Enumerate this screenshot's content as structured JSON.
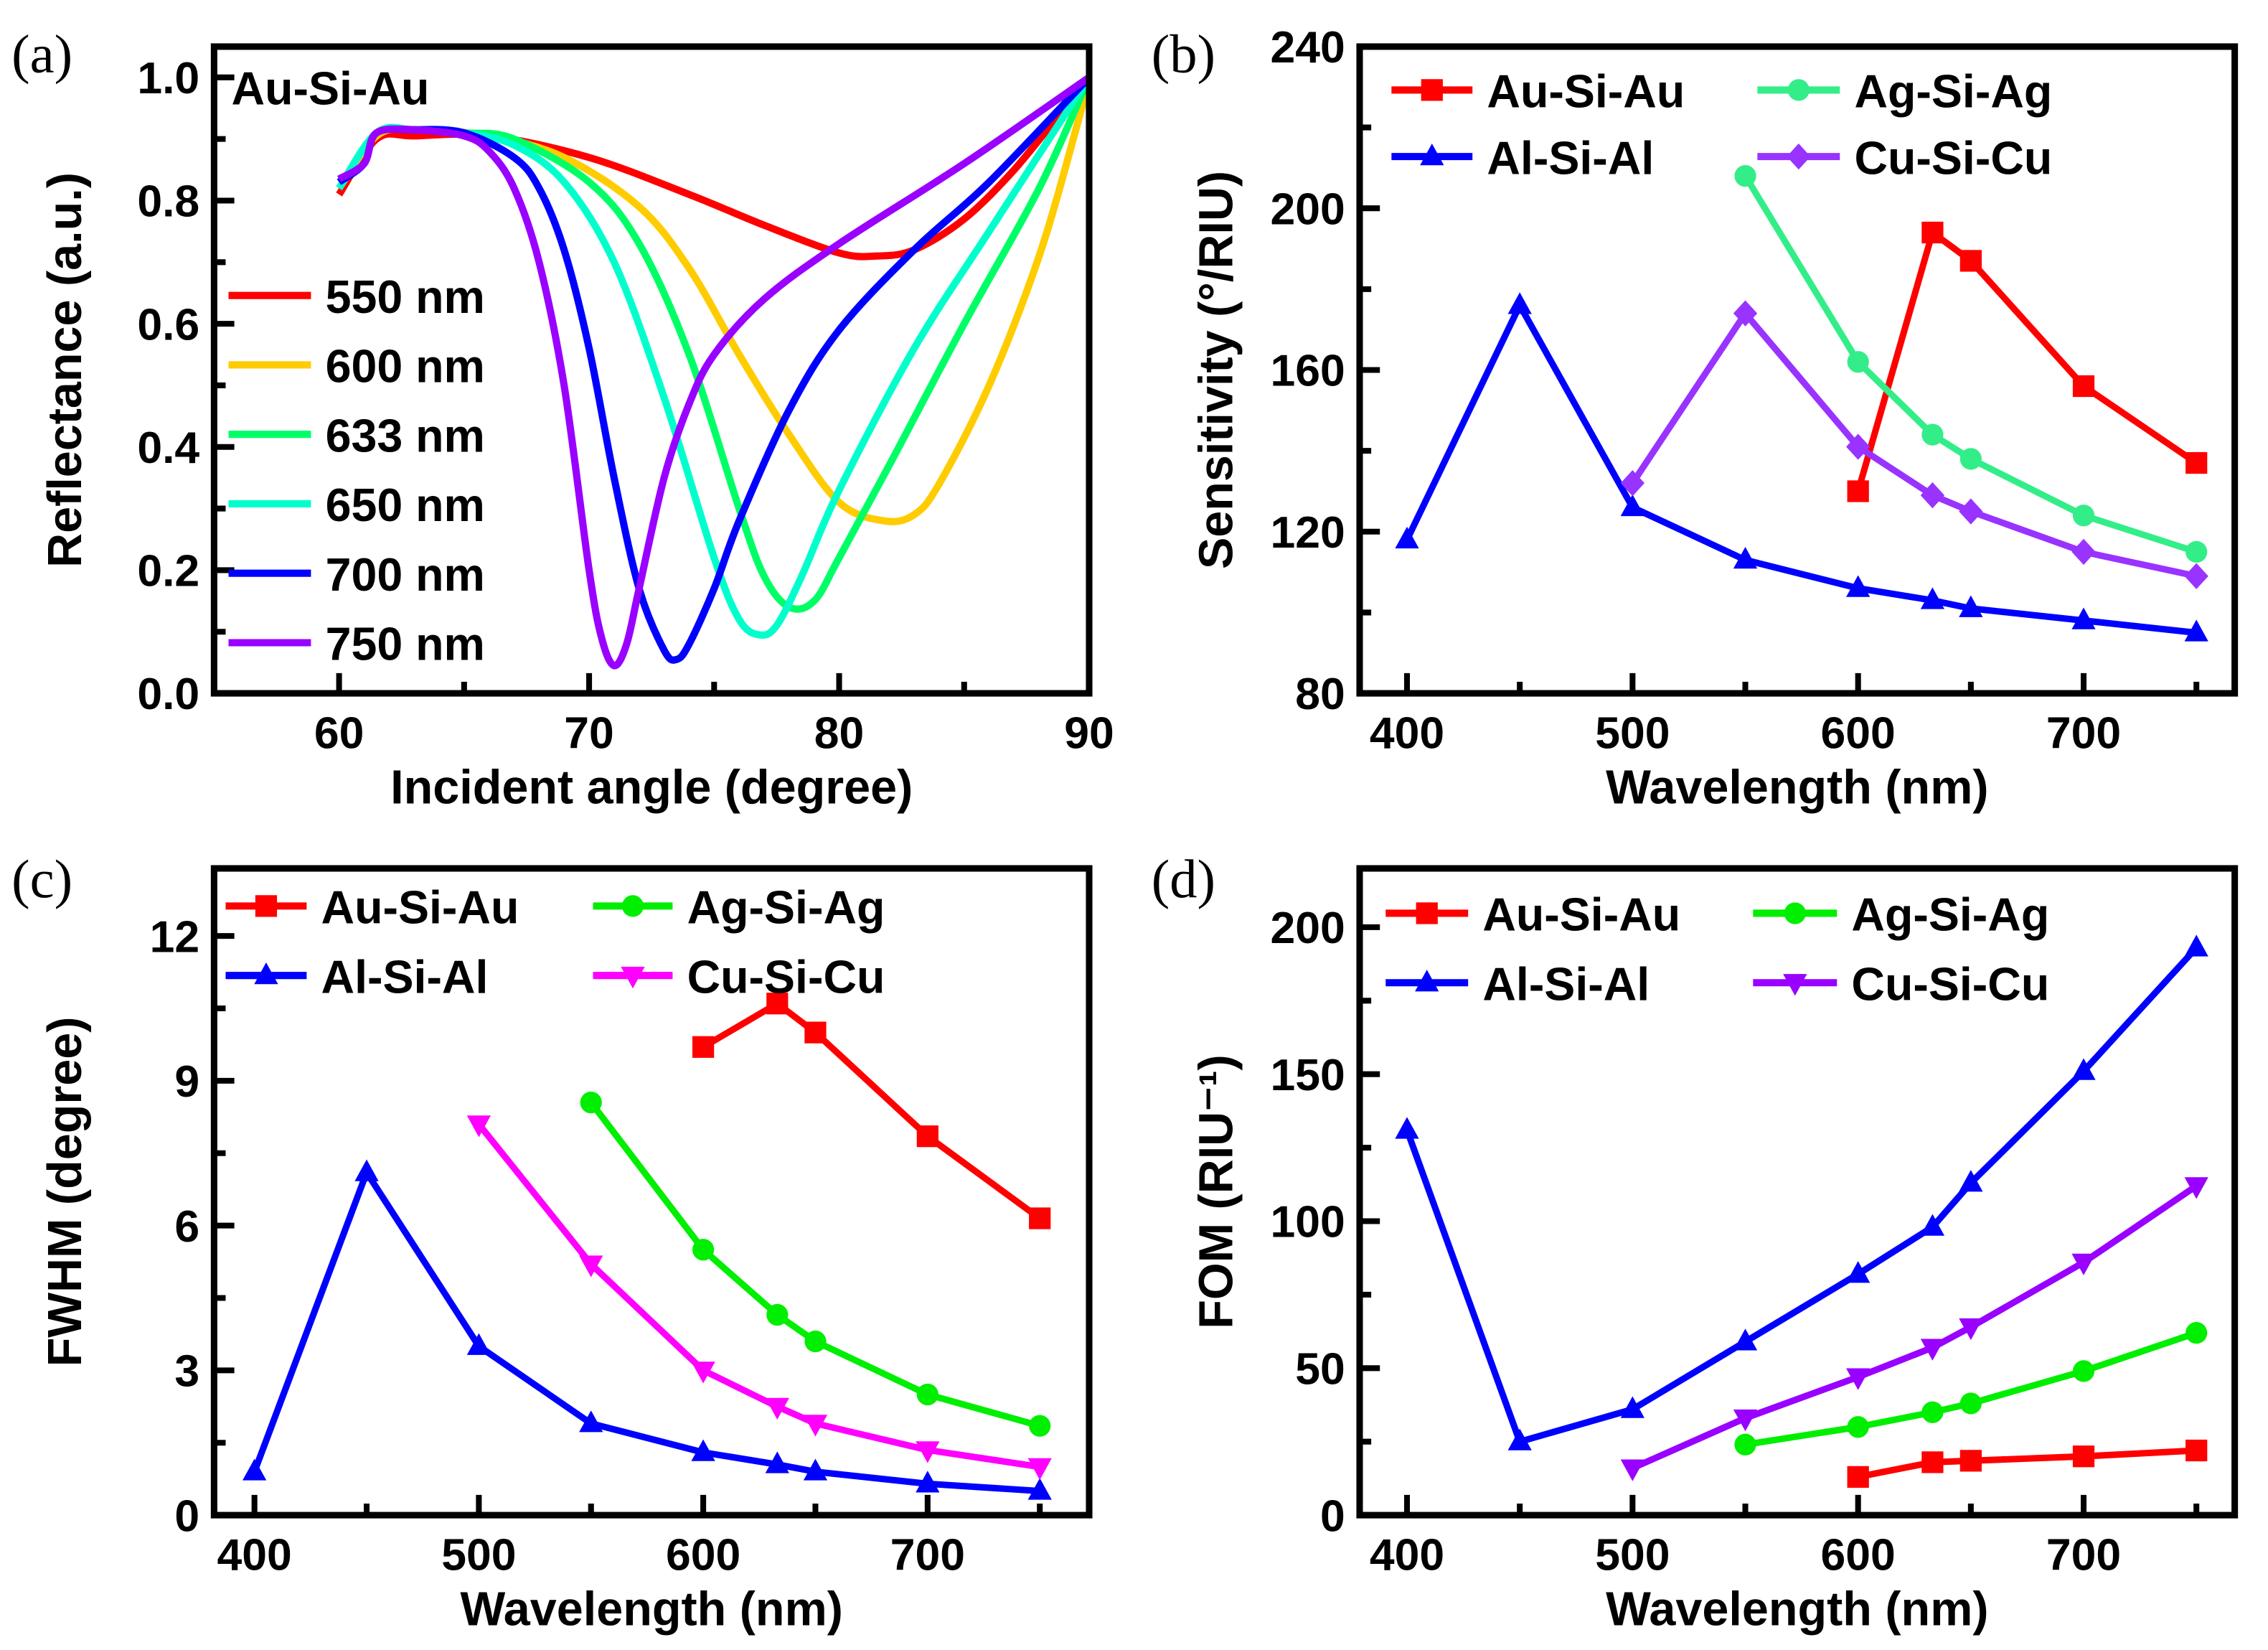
{
  "chart_data": [
    {
      "panel_label": "(a)",
      "type": "line",
      "title": "Au-Si-Au",
      "xlabel": "Incident angle (degree)",
      "ylabel": "Reflectance (a.u.)",
      "xlim": [
        55,
        90
      ],
      "ylim": [
        0,
        1.05
      ],
      "xticks": [
        60,
        70,
        80,
        90
      ],
      "yticks": [
        0.0,
        0.2,
        0.4,
        0.6,
        0.8,
        1.0
      ],
      "ytick_labels": [
        "0.0",
        "0.2",
        "0.4",
        "0.6",
        "0.8",
        "1.0"
      ],
      "legend": "left",
      "series": [
        {
          "name": "550 nm",
          "color": "#ff0000",
          "x": [
            60,
            61.5,
            63,
            66,
            70,
            74,
            77,
            80,
            81.5,
            83,
            85,
            87,
            89,
            90
          ],
          "y": [
            0.81,
            0.9,
            0.905,
            0.905,
            0.87,
            0.81,
            0.76,
            0.715,
            0.71,
            0.72,
            0.77,
            0.85,
            0.95,
            1.0
          ]
        },
        {
          "name": "600 nm",
          "color": "#ffcc00",
          "x": [
            60,
            61.5,
            63,
            66,
            69,
            72,
            74,
            76,
            78,
            80,
            81.8,
            83,
            84,
            86,
            88,
            89.5,
            90
          ],
          "y": [
            0.82,
            0.905,
            0.915,
            0.905,
            0.87,
            0.79,
            0.69,
            0.55,
            0.42,
            0.31,
            0.28,
            0.29,
            0.34,
            0.5,
            0.71,
            0.92,
            1.0
          ]
        },
        {
          "name": "633 nm",
          "color": "#00ff66",
          "x": [
            60,
            61.5,
            63,
            65,
            67,
            70,
            72,
            74,
            76,
            77,
            78,
            79,
            80,
            82,
            85,
            88,
            90
          ],
          "y": [
            0.82,
            0.91,
            0.915,
            0.91,
            0.9,
            0.83,
            0.73,
            0.55,
            0.3,
            0.19,
            0.14,
            0.15,
            0.22,
            0.37,
            0.6,
            0.82,
            1.0
          ]
        },
        {
          "name": "650 nm",
          "color": "#00ffcc",
          "x": [
            60,
            61.5,
            63,
            65,
            67,
            69,
            71,
            73,
            75,
            76,
            76.8,
            77.5,
            78.5,
            80,
            83,
            86,
            90
          ],
          "y": [
            0.82,
            0.91,
            0.915,
            0.91,
            0.89,
            0.83,
            0.7,
            0.48,
            0.22,
            0.12,
            0.095,
            0.11,
            0.19,
            0.33,
            0.56,
            0.75,
            1.0
          ]
        },
        {
          "name": "700 nm",
          "color": "#0000ff",
          "x": [
            60,
            61,
            61.5,
            63,
            65,
            67,
            68,
            69,
            70,
            71,
            72,
            73,
            73.5,
            74,
            75,
            76,
            78,
            80,
            83,
            86,
            90
          ],
          "y": [
            0.83,
            0.86,
            0.91,
            0.915,
            0.91,
            0.87,
            0.82,
            0.72,
            0.56,
            0.35,
            0.17,
            0.07,
            0.055,
            0.08,
            0.17,
            0.28,
            0.46,
            0.59,
            0.72,
            0.83,
            1.0
          ]
        },
        {
          "name": "750 nm",
          "color": "#9900ff",
          "x": [
            60,
            61,
            61.5,
            63,
            65,
            66,
            67,
            68,
            69,
            70,
            70.5,
            71,
            71.5,
            72,
            73,
            74,
            75,
            77,
            80,
            85,
            90
          ],
          "y": [
            0.835,
            0.86,
            0.91,
            0.915,
            0.905,
            0.88,
            0.82,
            0.7,
            0.5,
            0.2,
            0.09,
            0.045,
            0.08,
            0.17,
            0.35,
            0.47,
            0.55,
            0.64,
            0.73,
            0.86,
            1.0
          ]
        }
      ]
    },
    {
      "panel_label": "(b)",
      "type": "line",
      "xlabel": "Wavelength (nm)",
      "ylabel": "Sensitivity (°/RIU)",
      "xlim": [
        379,
        767
      ],
      "ylim": [
        80,
        240
      ],
      "xticks": [
        400,
        500,
        600,
        700
      ],
      "yticks": [
        80,
        120,
        160,
        200,
        240
      ],
      "legend": "top",
      "series": [
        {
          "name": "Au-Si-Au",
          "color": "#ff0000",
          "marker": "square",
          "x": [
            600,
            633,
            650,
            700,
            750
          ],
          "y": [
            130,
            194,
            187,
            156,
            137
          ]
        },
        {
          "name": "Ag-Si-Ag",
          "color": "#33ee88",
          "marker": "circle",
          "x": [
            550,
            600,
            633,
            650,
            700,
            750
          ],
          "y": [
            208,
            162,
            144,
            138,
            124,
            115
          ]
        },
        {
          "name": "Al-Si-Al",
          "color": "#0000ff",
          "marker": "triangle-up",
          "x": [
            400,
            450,
            500,
            550,
            600,
            633,
            650,
            700,
            750
          ],
          "y": [
            118,
            176,
            126,
            113,
            106,
            103,
            101,
            98,
            95
          ]
        },
        {
          "name": "Cu-Si-Cu",
          "color": "#9933ff",
          "marker": "diamond",
          "x": [
            500,
            550,
            600,
            633,
            650,
            700,
            750
          ],
          "y": [
            132,
            174,
            141,
            129,
            125,
            115,
            109
          ]
        }
      ]
    },
    {
      "panel_label": "(c)",
      "type": "line",
      "xlabel": "Wavelength (nm)",
      "ylabel": "FWHM (degree)",
      "xlim": [
        382,
        772
      ],
      "ylim": [
        0,
        13.4
      ],
      "xticks": [
        400,
        500,
        600,
        700
      ],
      "yticks": [
        0,
        3,
        6,
        9,
        12
      ],
      "legend": "top",
      "series": [
        {
          "name": "Au-Si-Au",
          "color": "#ff0000",
          "marker": "square",
          "x": [
            600,
            633,
            650,
            700,
            750
          ],
          "y": [
            9.7,
            10.6,
            10.0,
            7.85,
            6.15
          ]
        },
        {
          "name": "Ag-Si-Ag",
          "color": "#00ee00",
          "marker": "circle",
          "x": [
            550,
            600,
            633,
            650,
            700,
            750
          ],
          "y": [
            8.55,
            5.5,
            4.15,
            3.6,
            2.5,
            1.85
          ]
        },
        {
          "name": "Al-Si-Al",
          "color": "#0000ff",
          "marker": "triangle-up",
          "x": [
            400,
            450,
            500,
            550,
            600,
            633,
            650,
            700,
            750
          ],
          "y": [
            0.9,
            7.1,
            3.5,
            1.9,
            1.3,
            1.05,
            0.9,
            0.65,
            0.5
          ]
        },
        {
          "name": "Cu-Si-Cu",
          "color": "#ff00ff",
          "marker": "triangle-down",
          "x": [
            500,
            550,
            600,
            633,
            650,
            700,
            750
          ],
          "y": [
            8.1,
            5.2,
            3.0,
            2.25,
            1.9,
            1.35,
            1.0
          ]
        }
      ]
    },
    {
      "panel_label": "(d)",
      "type": "line",
      "xlabel": "Wavelength (nm)",
      "ylabel": "FOM (RIU⁻¹)",
      "xlim": [
        379,
        767
      ],
      "ylim": [
        0,
        220
      ],
      "xticks": [
        400,
        500,
        600,
        700
      ],
      "yticks": [
        0,
        50,
        100,
        150,
        200
      ],
      "legend": "top",
      "series": [
        {
          "name": "Au-Si-Au",
          "color": "#ff0000",
          "marker": "square",
          "x": [
            600,
            633,
            650,
            700,
            750
          ],
          "y": [
            13,
            18,
            18.5,
            20,
            22
          ]
        },
        {
          "name": "Ag-Si-Ag",
          "color": "#00ee00",
          "marker": "circle",
          "x": [
            550,
            600,
            633,
            650,
            700,
            750
          ],
          "y": [
            24,
            30,
            35,
            38,
            49,
            62
          ]
        },
        {
          "name": "Al-Si-Al",
          "color": "#0000ff",
          "marker": "triangle-up",
          "x": [
            400,
            450,
            500,
            550,
            600,
            633,
            650,
            700,
            750
          ],
          "y": [
            131,
            25,
            36,
            59,
            82,
            98,
            113,
            151,
            193
          ]
        },
        {
          "name": "Cu-Si-Cu",
          "color": "#9900ff",
          "marker": "triangle-down",
          "x": [
            500,
            550,
            600,
            633,
            650,
            700,
            750
          ],
          "y": [
            16,
            33,
            47,
            57,
            64,
            86,
            112
          ]
        }
      ]
    }
  ]
}
